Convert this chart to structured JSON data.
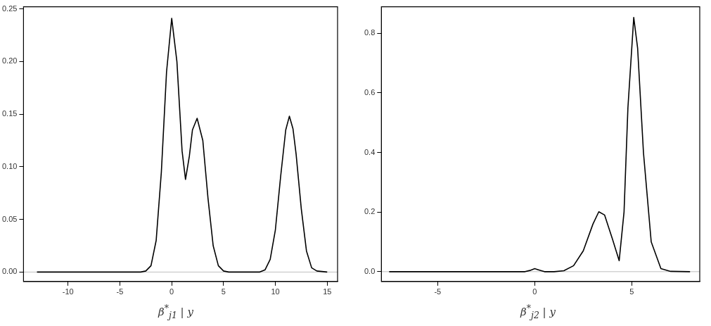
{
  "chart_data": [
    {
      "type": "line",
      "xlabel": "β$^{*}$$_{j1}$ | y",
      "x": [
        -13,
        -3,
        -2.5,
        -2,
        -1.5,
        -1,
        -0.5,
        0,
        0.5,
        1,
        1.33,
        1.7,
        2,
        2.45,
        3,
        3.5,
        4,
        4.5,
        5,
        5.5,
        8.5,
        9,
        9.5,
        10,
        10.5,
        11,
        11.35,
        11.7,
        12,
        12.5,
        13,
        13.5,
        14,
        15
      ],
      "series": [
        {
          "color": "#000000",
          "values": [
            0,
            0,
            0.001,
            0.006,
            0.03,
            0.095,
            0.19,
            0.241,
            0.2,
            0.115,
            0.088,
            0.11,
            0.135,
            0.146,
            0.125,
            0.07,
            0.025,
            0.006,
            0.001,
            0,
            0,
            0.002,
            0.012,
            0.04,
            0.09,
            0.135,
            0.148,
            0.136,
            0.112,
            0.06,
            0.02,
            0.004,
            0.001,
            0
          ]
        }
      ],
      "xlim": [
        -14.3,
        16
      ],
      "ylim": [
        -0.009,
        0.252
      ],
      "xticks": [
        -10,
        -5,
        0,
        5,
        10,
        15
      ],
      "yticks": [
        {
          "value": 0,
          "label": "0.00"
        },
        {
          "value": 0.05,
          "label": "0.05"
        },
        {
          "value": 0.1,
          "label": "0.10"
        },
        {
          "value": 0.15,
          "label": "0.15"
        },
        {
          "value": 0.2,
          "label": "0.20"
        },
        {
          "value": 0.25,
          "label": "0.25"
        }
      ],
      "ref_lines": [
        {
          "axis": "y",
          "value": 0,
          "color": "#bebebe"
        }
      ],
      "grid": false,
      "legend": false,
      "marker": "none",
      "line_style": "solid"
    },
    {
      "type": "line",
      "xlabel": "β$^{*}$$_{j2}$ | y",
      "x": [
        -7.5,
        -0.5,
        -0.25,
        0,
        0.25,
        0.5,
        1,
        1.5,
        2,
        2.5,
        3,
        3.3,
        3.6,
        4,
        4.35,
        4.6,
        4.8,
        5.1,
        5.3,
        5.6,
        6,
        6.5,
        7,
        8
      ],
      "series": [
        {
          "color": "#000000",
          "values": [
            0,
            0,
            0.004,
            0.01,
            0.005,
            0,
            0,
            0.003,
            0.02,
            0.07,
            0.16,
            0.201,
            0.19,
            0.11,
            0.037,
            0.2,
            0.55,
            0.853,
            0.75,
            0.4,
            0.1,
            0.01,
            0.001,
            0
          ]
        }
      ],
      "xlim": [
        -7.9,
        8.5
      ],
      "ylim": [
        -0.033,
        0.889
      ],
      "xticks": [
        -5,
        0,
        5
      ],
      "yticks": [
        {
          "value": 0,
          "label": "0.0"
        },
        {
          "value": 0.2,
          "label": "0.2"
        },
        {
          "value": 0.4,
          "label": "0.4"
        },
        {
          "value": 0.6,
          "label": "0.6"
        },
        {
          "value": 0.8,
          "label": "0.8"
        }
      ],
      "ref_lines": [
        {
          "axis": "y",
          "value": 0,
          "color": "#bebebe"
        }
      ],
      "grid": false,
      "legend": false,
      "marker": "none",
      "line_style": "solid"
    }
  ]
}
